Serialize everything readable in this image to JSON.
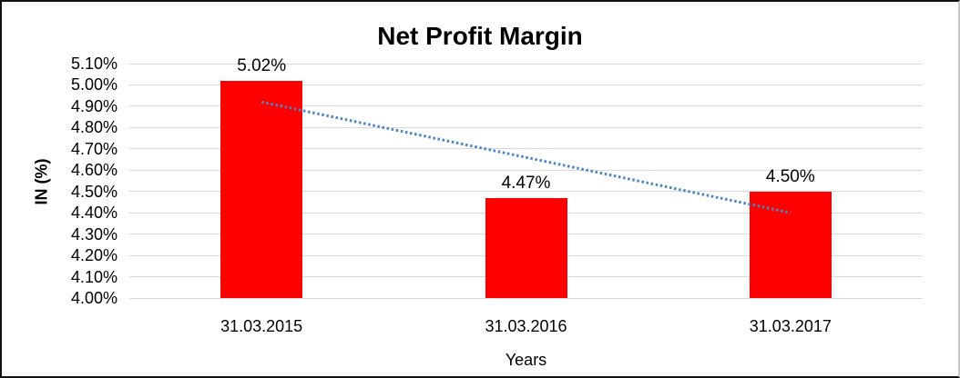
{
  "chart_data": {
    "type": "bar",
    "title": "Net Profit Margin",
    "xlabel": "Years",
    "ylabel": "IN (%)",
    "categories": [
      "31.03.2015",
      "31.03.2016",
      "31.03.2017"
    ],
    "values": [
      5.02,
      4.47,
      4.5
    ],
    "data_labels": [
      "5.02%",
      "4.47%",
      "4.50%"
    ],
    "ylim": [
      4.0,
      5.1
    ],
    "ytick_step": 0.1,
    "ytick_labels": [
      "5.10%",
      "5.00%",
      "4.90%",
      "4.80%",
      "4.70%",
      "4.60%",
      "4.50%",
      "4.40%",
      "4.30%",
      "4.20%",
      "4.10%",
      "4.00%"
    ],
    "grid": true,
    "legend": "none",
    "bar_color": "#ff0000",
    "gridline_color": "#d9d9d9",
    "text_color": "#000000",
    "trendline": {
      "kind": "linear-dotted",
      "color": "#4a86c6",
      "start_value": 4.92,
      "end_value": 4.4
    }
  }
}
